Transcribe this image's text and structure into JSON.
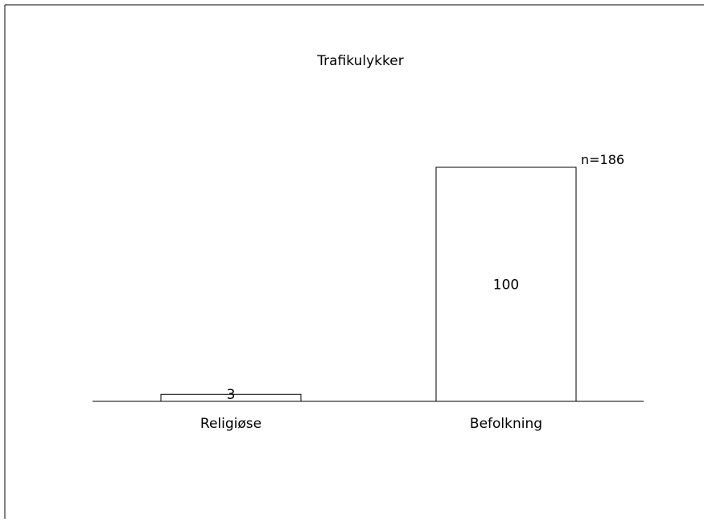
{
  "chart_data": {
    "type": "bar",
    "title": "Trafikulykker",
    "categories": [
      "Religiøse",
      "Befolkning"
    ],
    "values": [
      3,
      100
    ],
    "data_labels": [
      "3",
      "100"
    ],
    "annotation": "n=186",
    "xlabel": "",
    "ylabel": "",
    "ylim": [
      0,
      100
    ],
    "grid": false,
    "legend": "none"
  }
}
